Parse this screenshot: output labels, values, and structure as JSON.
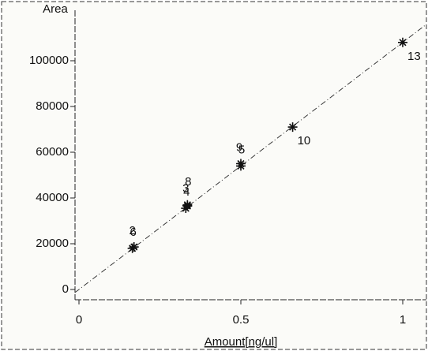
{
  "chart_data": {
    "type": "scatter",
    "ylabel": "Area",
    "xlabel": "Amount[ng/ul]",
    "x": [
      0.165,
      0.17,
      0.33,
      0.335,
      0.335,
      0.5,
      0.5,
      0.66,
      1.0
    ],
    "values": [
      18000,
      18600,
      35500,
      37000,
      36500,
      54000,
      55000,
      71000,
      108000
    ],
    "point_labels": [
      "6",
      "2",
      "4",
      "3",
      "8",
      "5",
      "9",
      "10",
      "13"
    ],
    "fit_line": {
      "x": [
        -0.012,
        1.073
      ],
      "values": [
        -1300,
        115900
      ]
    },
    "color": "#111111",
    "xlim": [
      -0.0122,
      1.0732
    ],
    "ylim": [
      -4483,
      124828
    ],
    "xticks": [
      0,
      0.5,
      1
    ],
    "yticks": [
      0,
      20000,
      40000,
      60000,
      80000,
      100000
    ]
  }
}
